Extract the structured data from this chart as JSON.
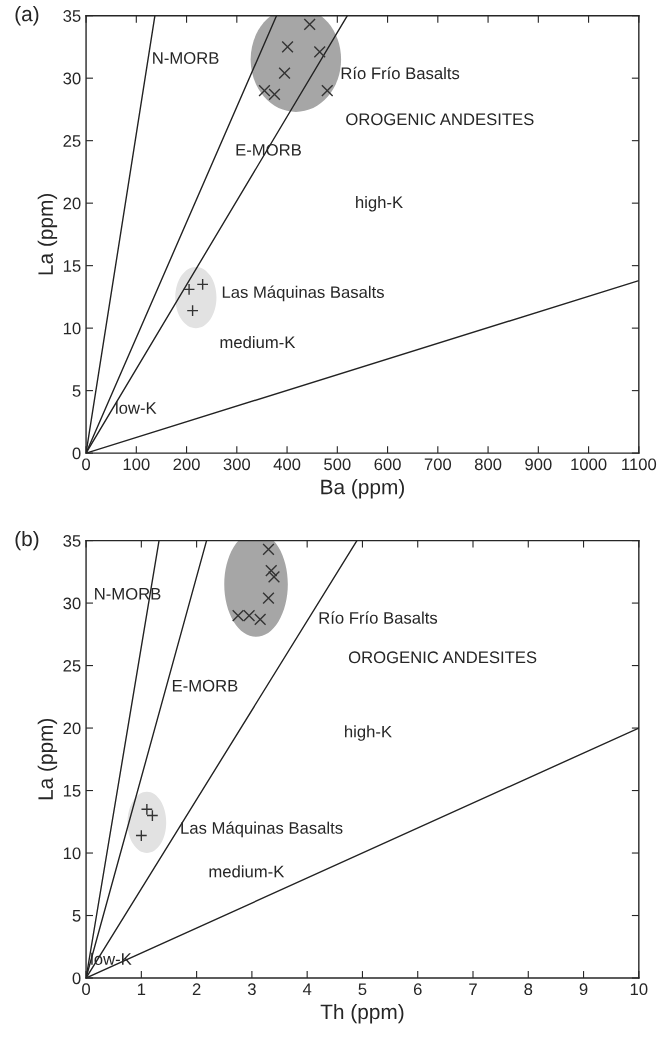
{
  "chart_data": [
    {
      "type": "scatter",
      "title": "(a)",
      "xlabel": "Ba (ppm)",
      "ylabel": "La (ppm)",
      "xlim": [
        0,
        1100
      ],
      "ylim": [
        0,
        35
      ],
      "xticks": [
        0,
        100,
        200,
        300,
        400,
        500,
        600,
        700,
        800,
        900,
        1000,
        1100
      ],
      "yticks": [
        0,
        5,
        10,
        15,
        20,
        25,
        30,
        35
      ],
      "grid": false,
      "legend": false,
      "series": [
        {
          "type": "line",
          "color": "#222222",
          "x": [
            0,
            137
          ],
          "values": [
            0,
            35
          ]
        },
        {
          "type": "line",
          "color": "#222222",
          "x": [
            0,
            379
          ],
          "values": [
            0,
            35
          ]
        },
        {
          "type": "line",
          "color": "#222222",
          "x": [
            0,
            520
          ],
          "values": [
            0,
            35
          ]
        },
        {
          "type": "line",
          "color": "#222222",
          "x": [
            0,
            1100
          ],
          "values": [
            0,
            13.8
          ]
        },
        {
          "type": "scatter",
          "marker": "cross",
          "color": "#333333",
          "x": [
            445,
            401,
            465,
            395,
            355,
            375,
            480
          ],
          "values": [
            34.3,
            32.5,
            32.1,
            30.4,
            29.0,
            28.7,
            29.0
          ]
        },
        {
          "type": "scatter",
          "marker": "plus",
          "color": "#333333",
          "x": [
            205,
            232,
            212
          ],
          "values": [
            13.1,
            13.5,
            11.4
          ]
        }
      ],
      "annotations": [
        "N-MORB",
        "Río Frío Basalts",
        "OROGENIC ANDESITES",
        "E-MORB",
        "high-K",
        "Las Máquinas Basalts",
        "medium-K",
        "low-K"
      ]
    },
    {
      "type": "scatter",
      "title": "(b)",
      "xlabel": "Th (ppm)",
      "ylabel": "La (ppm)",
      "xlim": [
        0,
        10
      ],
      "ylim": [
        0,
        35
      ],
      "xticks": [
        0,
        1,
        2,
        3,
        4,
        5,
        6,
        7,
        8,
        9,
        10
      ],
      "yticks": [
        0,
        5,
        10,
        15,
        20,
        25,
        30,
        35
      ],
      "grid": false,
      "legend": false,
      "series": [
        {
          "type": "line",
          "color": "#222222",
          "x": [
            0,
            1.32
          ],
          "values": [
            0,
            35
          ]
        },
        {
          "type": "line",
          "color": "#222222",
          "x": [
            0,
            2.18
          ],
          "values": [
            0,
            35
          ]
        },
        {
          "type": "line",
          "color": "#222222",
          "x": [
            0,
            4.9
          ],
          "values": [
            0,
            35
          ]
        },
        {
          "type": "line",
          "color": "#222222",
          "x": [
            0,
            10
          ],
          "values": [
            0,
            20
          ]
        },
        {
          "type": "scatter",
          "marker": "cross",
          "color": "#333333",
          "x": [
            3.3,
            3.35,
            3.4,
            3.3,
            2.75,
            2.95,
            3.15
          ],
          "values": [
            34.3,
            32.6,
            32.1,
            30.4,
            29.0,
            29.0,
            28.7
          ]
        },
        {
          "type": "scatter",
          "marker": "plus",
          "color": "#333333",
          "x": [
            1.1,
            1.2,
            1.0
          ],
          "values": [
            13.5,
            13.0,
            11.4
          ]
        }
      ],
      "annotations": [
        "N-MORB",
        "Río Frío Basalts",
        "OROGENIC ANDESITES",
        "E-MORB",
        "high-K",
        "Las Máquinas Basalts",
        "medium-K",
        "low-K"
      ]
    }
  ]
}
